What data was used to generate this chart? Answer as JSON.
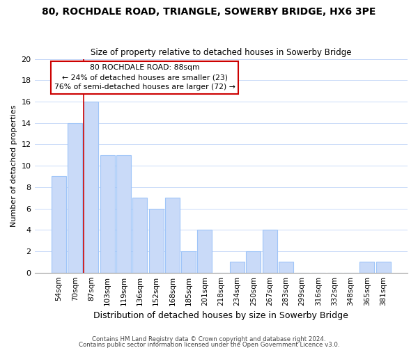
{
  "title": "80, ROCHDALE ROAD, TRIANGLE, SOWERBY BRIDGE, HX6 3PE",
  "subtitle": "Size of property relative to detached houses in Sowerby Bridge",
  "xlabel": "Distribution of detached houses by size in Sowerby Bridge",
  "ylabel": "Number of detached properties",
  "bar_labels": [
    "54sqm",
    "70sqm",
    "87sqm",
    "103sqm",
    "119sqm",
    "136sqm",
    "152sqm",
    "168sqm",
    "185sqm",
    "201sqm",
    "218sqm",
    "234sqm",
    "250sqm",
    "267sqm",
    "283sqm",
    "299sqm",
    "316sqm",
    "332sqm",
    "348sqm",
    "365sqm",
    "381sqm"
  ],
  "bar_values": [
    9,
    14,
    16,
    11,
    11,
    7,
    6,
    7,
    2,
    4,
    0,
    1,
    2,
    4,
    1,
    0,
    0,
    0,
    0,
    1,
    1
  ],
  "bar_color": "#c9daf8",
  "bar_edge_color": "#9fc5f8",
  "highlight_index": 2,
  "highlight_line_color": "#cc0000",
  "ylim": [
    0,
    20
  ],
  "yticks": [
    0,
    2,
    4,
    6,
    8,
    10,
    12,
    14,
    16,
    18,
    20
  ],
  "annotation_title": "80 ROCHDALE ROAD: 88sqm",
  "annotation_line1": "← 24% of detached houses are smaller (23)",
  "annotation_line2": "76% of semi-detached houses are larger (72) →",
  "footer_line1": "Contains HM Land Registry data © Crown copyright and database right 2024.",
  "footer_line2": "Contains public sector information licensed under the Open Government Licence v3.0.",
  "background_color": "#ffffff",
  "grid_color": "#c9daf8"
}
